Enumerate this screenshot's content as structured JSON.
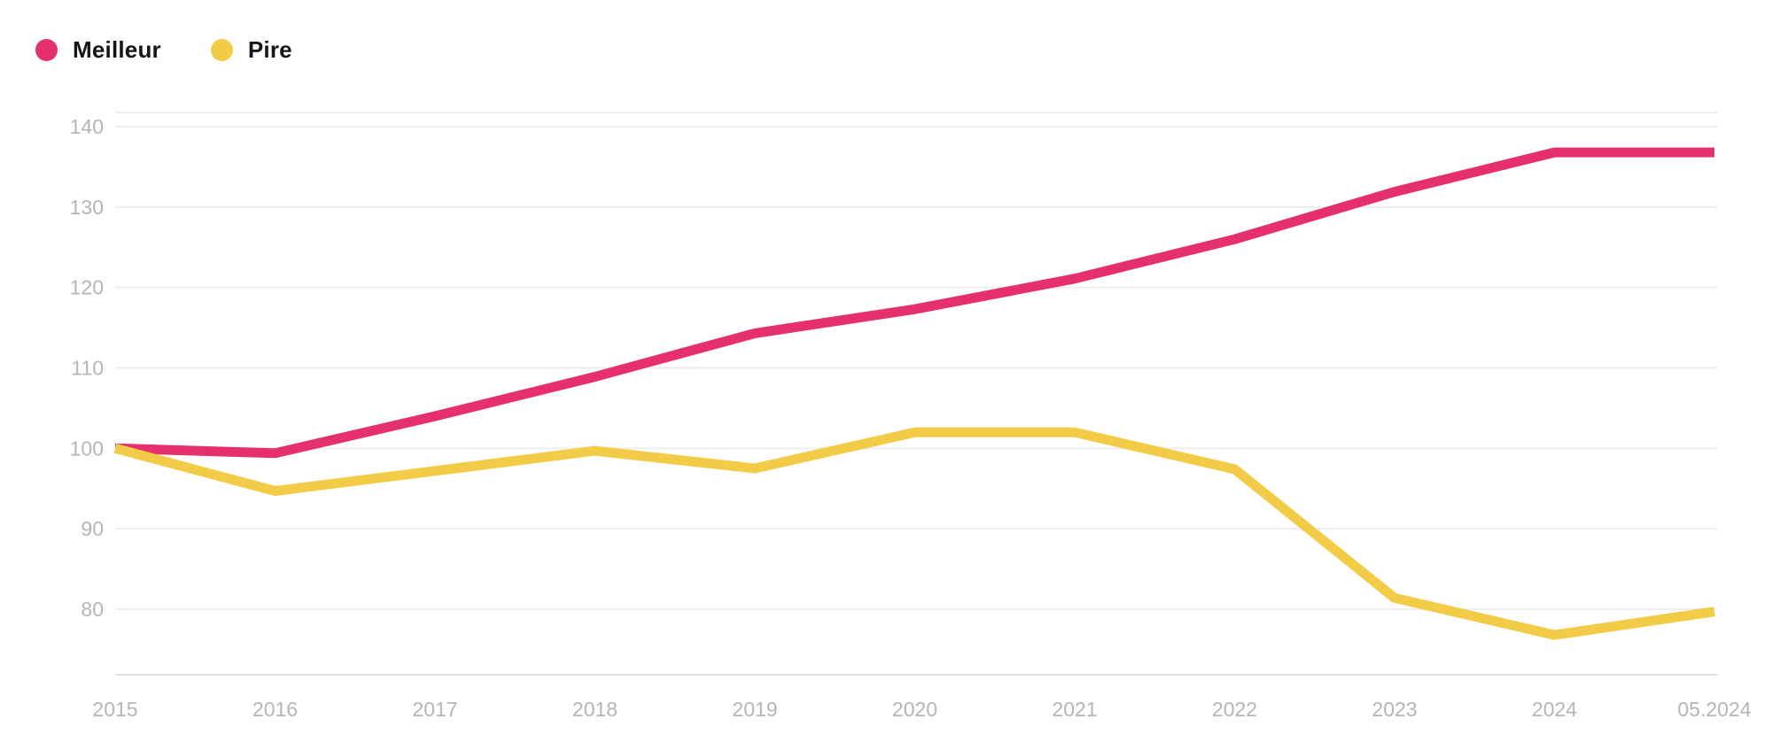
{
  "legend": [
    {
      "label": "Meilleur",
      "color": "#e5306b"
    },
    {
      "label": "Pire",
      "color": "#f2cb47"
    }
  ],
  "colors": {
    "background": "#ffffff",
    "grid": "#ededed",
    "axis": "#e0e0e0",
    "tick_label": "#b5b5b5",
    "legend_text": "#161618",
    "meilleur": "#e5306b",
    "pire": "#f2cb47"
  },
  "chart_data": {
    "type": "line",
    "title": "",
    "xlabel": "",
    "ylabel": "",
    "legend_position": "top-left",
    "grid": "horizontal",
    "x": [
      "2015",
      "2016",
      "2017",
      "2018",
      "2019",
      "2020",
      "2021",
      "2022",
      "2023",
      "2024",
      "05.2024"
    ],
    "series": [
      {
        "name": "Meilleur",
        "color": "#e5306b",
        "values": [
          100,
          99.4,
          104,
          108.9,
          114.3,
          117.3,
          121.1,
          126,
          131.9,
          136.8,
          136.8
        ]
      },
      {
        "name": "Pire",
        "color": "#f2cb47",
        "values": [
          100,
          94.7,
          97.2,
          99.7,
          97.5,
          102,
          102,
          97.4,
          81.4,
          76.8,
          79.7
        ]
      }
    ],
    "y_ticks": [
      140,
      130,
      120,
      110,
      100,
      90,
      80
    ],
    "ylim": [
      72,
      142
    ]
  }
}
